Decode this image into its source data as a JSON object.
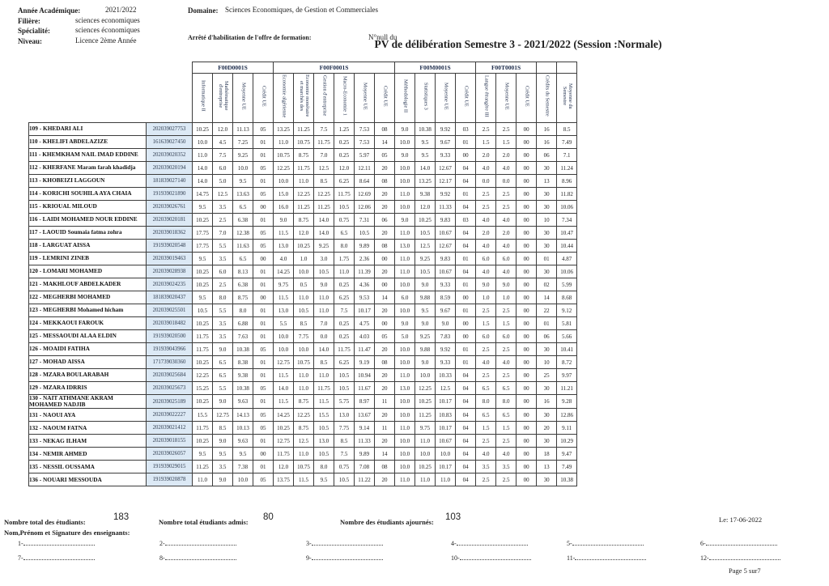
{
  "header": {
    "annee_label": "Année Académique:",
    "annee_value": "2021/2022",
    "filiere_label": "Filière:",
    "filiere_value": "sciences economiques",
    "specialite_label": "Spécialité:",
    "specialite_value": "sciences économiques",
    "niveau_label": "Niveau:",
    "niveau_value": "Licence 2ème Année",
    "domaine_label": "Domaine:",
    "domaine_value": "Sciences Economiques, de Gestion et Commerciales",
    "arrete_label": "Arrêté d'habilitation de l'offre de formation:",
    "arrete_value": "N°null  du",
    "title": "PV de délibération Semestre 3  -  2021/2022 (Session :Normale)"
  },
  "table": {
    "groups": [
      {
        "code": "F00D0001S",
        "span": 4
      },
      {
        "code": "F00F0001S",
        "span": 6
      },
      {
        "code": "F00M0001S",
        "span": 4
      },
      {
        "code": "F00T0001S",
        "span": 3
      }
    ],
    "columns": [
      "Informatique II",
      "Mathématique d'entreprise",
      "Moyenne UE",
      "Crédit UE",
      "Economie algérienne",
      "Economie monétaire et marchés des",
      "Gestion d'entreprise",
      "Macro-Economie 1",
      "Moyenne UE",
      "Crédit UE",
      "Méthodologie II",
      "Statistiques 3",
      "Moyenne UE",
      "Crédit UE",
      "Langue étrangère III",
      "Moyenne UE",
      "Crédit UE",
      "Crédits du Semestre",
      "Moyenne du Semestre"
    ],
    "rows": [
      {
        "name": "109 - KHEDARI  ALI",
        "id": "202039027753",
        "values": [
          "10.25",
          "12.0",
          "11.13",
          "05",
          "13.25",
          "11.25",
          "7.5",
          "1.25",
          "7.53",
          "08",
          "9.0",
          "10.38",
          "9.92",
          "03",
          "2.5",
          "2.5",
          "00",
          "16",
          "8.5"
        ]
      },
      {
        "name": "110 - KHELIFI  ABDELAZIZE",
        "id": "161639027450",
        "values": [
          "10.0",
          "4.5",
          "7.25",
          "01",
          "11.0",
          "10.75",
          "11.75",
          "0.25",
          "7.53",
          "14",
          "10.0",
          "9.5",
          "9.67",
          "01",
          "1.5",
          "1.5",
          "00",
          "16",
          "7.49"
        ]
      },
      {
        "name": "111 - KHEMKHAM  NAIL IMAD EDDINE",
        "id": "202039020352",
        "values": [
          "11.0",
          "7.5",
          "9.25",
          "01",
          "10.75",
          "8.75",
          "7.0",
          "0.25",
          "5.97",
          "05",
          "9.0",
          "9.5",
          "9.33",
          "00",
          "2.0",
          "2.0",
          "00",
          "06",
          "7.1"
        ]
      },
      {
        "name": "112 - KHERFANE  Maram farah khadidja",
        "id": "202039020194",
        "values": [
          "14.0",
          "6.0",
          "10.0",
          "05",
          "12.25",
          "11.75",
          "12.5",
          "12.0",
          "12.11",
          "20",
          "10.0",
          "14.0",
          "12.67",
          "04",
          "4.0",
          "4.0",
          "00",
          "30",
          "11.24"
        ]
      },
      {
        "name": "113 - KHOBEIZI  LAGGOUN",
        "id": "181839027140",
        "values": [
          "14.0",
          "5.0",
          "9.5",
          "01",
          "10.0",
          "11.0",
          "8.5",
          "6.25",
          "8.64",
          "08",
          "10.0",
          "13.25",
          "12.17",
          "04",
          "0.0",
          "0.0",
          "00",
          "13",
          "8.96"
        ]
      },
      {
        "name": "114 - KORICHI  SOUHILA AYA CHAIA",
        "id": "191939021890",
        "values": [
          "14.75",
          "12.5",
          "13.63",
          "05",
          "15.0",
          "12.25",
          "12.25",
          "11.75",
          "12.69",
          "20",
          "11.0",
          "9.38",
          "9.92",
          "01",
          "2.5",
          "2.5",
          "00",
          "30",
          "11.82"
        ]
      },
      {
        "name": "115 - KRIOUAL  MILOUD",
        "id": "202039026761",
        "values": [
          "9.5",
          "3.5",
          "6.5",
          "00",
          "16.0",
          "11.25",
          "11.25",
          "10.5",
          "12.06",
          "20",
          "10.0",
          "12.0",
          "11.33",
          "04",
          "2.5",
          "2.5",
          "00",
          "30",
          "10.06"
        ]
      },
      {
        "name": "116 - LAIDI  MOHAMED NOUR EDDINE",
        "id": "202039020181",
        "values": [
          "10.25",
          "2.5",
          "6.38",
          "01",
          "9.0",
          "8.75",
          "14.0",
          "0.75",
          "7.31",
          "06",
          "9.0",
          "10.25",
          "9.83",
          "03",
          "4.0",
          "4.0",
          "00",
          "10",
          "7.34"
        ]
      },
      {
        "name": "117 - LAOUID  Soumaia fatma zohra",
        "id": "202039018362",
        "values": [
          "17.75",
          "7.0",
          "12.38",
          "05",
          "11.5",
          "12.0",
          "14.0",
          "6.5",
          "10.5",
          "20",
          "11.0",
          "10.5",
          "10.67",
          "04",
          "2.0",
          "2.0",
          "00",
          "30",
          "10.47"
        ]
      },
      {
        "name": "118 - LARGUAT  AISSA",
        "id": "191939020548",
        "values": [
          "17.75",
          "5.5",
          "11.63",
          "05",
          "13.0",
          "10.25",
          "9.25",
          "8.0",
          "9.89",
          "08",
          "13.0",
          "12.5",
          "12.67",
          "04",
          "4.0",
          "4.0",
          "00",
          "30",
          "10.44"
        ]
      },
      {
        "name": "119 - LEMRINI  ZINEB",
        "id": "202039019463",
        "values": [
          "9.5",
          "3.5",
          "6.5",
          "00",
          "4.0",
          "1.0",
          "3.0",
          "1.75",
          "2.36",
          "00",
          "11.0",
          "9.25",
          "9.83",
          "01",
          "6.0",
          "6.0",
          "00",
          "01",
          "4.87"
        ]
      },
      {
        "name": "120 - LOMARI  MOHAMED",
        "id": "202039028938",
        "values": [
          "10.25",
          "6.0",
          "8.13",
          "01",
          "14.25",
          "10.0",
          "10.5",
          "11.0",
          "11.39",
          "20",
          "11.0",
          "10.5",
          "10.67",
          "04",
          "4.0",
          "4.0",
          "00",
          "30",
          "10.06"
        ]
      },
      {
        "name": "121 - MAKHLOUF  ABDELKADER",
        "id": "202039024235",
        "values": [
          "10.25",
          "2.5",
          "6.38",
          "01",
          "9.75",
          "0.5",
          "9.0",
          "0.25",
          "4.36",
          "00",
          "10.0",
          "9.0",
          "9.33",
          "01",
          "9.0",
          "9.0",
          "00",
          "02",
          "5.99"
        ]
      },
      {
        "name": "122 - MEGHERBI  MOHAMED",
        "id": "181839020437",
        "values": [
          "9.5",
          "8.0",
          "8.75",
          "00",
          "11.5",
          "11.0",
          "11.0",
          "6.25",
          "9.53",
          "14",
          "6.0",
          "9.88",
          "8.59",
          "00",
          "1.0",
          "1.0",
          "00",
          "14",
          "8.68"
        ]
      },
      {
        "name": "123 - MEGHERBI  Mohamed hicham",
        "id": "202039025501",
        "values": [
          "10.5",
          "5.5",
          "8.0",
          "01",
          "13.0",
          "10.5",
          "11.0",
          "7.5",
          "10.17",
          "20",
          "10.0",
          "9.5",
          "9.67",
          "01",
          "2.5",
          "2.5",
          "00",
          "22",
          "9.12"
        ]
      },
      {
        "name": "124 - MEKKAOUI  FAROUK",
        "id": "202039018482",
        "values": [
          "10.25",
          "3.5",
          "6.88",
          "01",
          "5.5",
          "8.5",
          "7.0",
          "0.25",
          "4.75",
          "00",
          "9.0",
          "9.0",
          "9.0",
          "00",
          "1.5",
          "1.5",
          "00",
          "01",
          "5.81"
        ]
      },
      {
        "name": "125 - MESSAOUDI  ALAA ELDIN",
        "id": "191939020500",
        "values": [
          "11.75",
          "3.5",
          "7.63",
          "01",
          "10.0",
          "7.75",
          "0.0",
          "0.25",
          "4.03",
          "05",
          "5.0",
          "9.25",
          "7.83",
          "00",
          "6.0",
          "6.0",
          "00",
          "06",
          "5.66"
        ]
      },
      {
        "name": "126 - MOAIDI  FATIHA",
        "id": "191939043966",
        "values": [
          "11.75",
          "9.0",
          "10.38",
          "05",
          "10.0",
          "10.0",
          "14.0",
          "11.75",
          "11.47",
          "20",
          "10.0",
          "9.88",
          "9.92",
          "01",
          "2.5",
          "2.5",
          "00",
          "30",
          "10.41"
        ]
      },
      {
        "name": "127 - MOHAD  AISSA",
        "id": "171739030360",
        "values": [
          "10.25",
          "6.5",
          "8.38",
          "01",
          "12.75",
          "10.75",
          "8.5",
          "6.25",
          "9.19",
          "08",
          "10.0",
          "9.0",
          "9.33",
          "01",
          "4.0",
          "4.0",
          "00",
          "10",
          "8.72"
        ]
      },
      {
        "name": "128 - MZARA  BOULARABAH",
        "id": "202039025684",
        "values": [
          "12.25",
          "6.5",
          "9.38",
          "01",
          "11.5",
          "11.0",
          "11.0",
          "10.5",
          "10.94",
          "20",
          "11.0",
          "10.0",
          "10.33",
          "04",
          "2.5",
          "2.5",
          "00",
          "25",
          "9.97"
        ]
      },
      {
        "name": "129 - MZARA  IDRRIS",
        "id": "202039025673",
        "values": [
          "15.25",
          "5.5",
          "10.38",
          "05",
          "14.0",
          "11.0",
          "11.75",
          "10.5",
          "11.67",
          "20",
          "13.0",
          "12.25",
          "12.5",
          "04",
          "6.5",
          "6.5",
          "00",
          "30",
          "11.21"
        ]
      },
      {
        "name": "130 - NAIT ATHMANE  AKRAM MOHAMED NADJIB",
        "id": "202039025189",
        "values": [
          "10.25",
          "9.0",
          "9.63",
          "01",
          "11.5",
          "8.75",
          "11.5",
          "5.75",
          "8.97",
          "11",
          "10.0",
          "10.25",
          "10.17",
          "04",
          "8.0",
          "8.0",
          "00",
          "16",
          "9.28"
        ]
      },
      {
        "name": "131 - NAOUI  AYA",
        "id": "202039022227",
        "values": [
          "15.5",
          "12.75",
          "14.13",
          "05",
          "14.25",
          "12.25",
          "15.5",
          "13.0",
          "13.67",
          "20",
          "10.0",
          "11.25",
          "10.83",
          "04",
          "6.5",
          "6.5",
          "00",
          "30",
          "12.86"
        ]
      },
      {
        "name": "132 - NAOUM  FATNA",
        "id": "202039021412",
        "values": [
          "11.75",
          "8.5",
          "10.13",
          "05",
          "10.25",
          "8.75",
          "10.5",
          "7.75",
          "9.14",
          "11",
          "11.0",
          "9.75",
          "10.17",
          "04",
          "1.5",
          "1.5",
          "00",
          "20",
          "9.11"
        ]
      },
      {
        "name": "133 - NEKAG  ILHAM",
        "id": "202039018155",
        "values": [
          "10.25",
          "9.0",
          "9.63",
          "01",
          "12.75",
          "12.5",
          "13.0",
          "8.5",
          "11.33",
          "20",
          "10.0",
          "11.0",
          "10.67",
          "04",
          "2.5",
          "2.5",
          "00",
          "30",
          "10.29"
        ]
      },
      {
        "name": "134 - NEMIR  AHMED",
        "id": "202039026057",
        "values": [
          "9.5",
          "9.5",
          "9.5",
          "00",
          "11.75",
          "11.0",
          "10.5",
          "7.5",
          "9.89",
          "14",
          "10.0",
          "10.0",
          "10.0",
          "04",
          "4.0",
          "4.0",
          "00",
          "18",
          "9.47"
        ]
      },
      {
        "name": "135 - NESSIL  OUSSAMA",
        "id": "191939029015",
        "values": [
          "11.25",
          "3.5",
          "7.38",
          "01",
          "12.0",
          "10.75",
          "8.0",
          "0.75",
          "7.08",
          "08",
          "10.0",
          "10.25",
          "10.17",
          "04",
          "3.5",
          "3.5",
          "00",
          "13",
          "7.49"
        ]
      },
      {
        "name": "136 - NOUARI  MESSOUDA",
        "id": "191939020878",
        "values": [
          "11.0",
          "9.0",
          "10.0",
          "05",
          "13.75",
          "11.5",
          "9.5",
          "10.5",
          "11.22",
          "20",
          "11.0",
          "11.0",
          "11.0",
          "04",
          "2.5",
          "2.5",
          "00",
          "30",
          "10.38"
        ]
      }
    ]
  },
  "footer": {
    "total_label": "Nombre total des étudiants:",
    "total_value": "183",
    "admis_label": "Nombre total étudiants admis:",
    "admis_value": "80",
    "ajournes_label": "Nombre des étudiants ajournés:",
    "ajournes_value": "103",
    "date": "Le: 17-06-2022",
    "signature_label": "Nom,Prénom et Signature des enseignants:",
    "signature_slots": [
      "1-",
      "2-",
      "3-",
      "4-",
      "5-",
      "6-",
      "7-",
      "8-",
      "9-",
      "10-",
      "11-",
      "12-"
    ],
    "page": "Page 5 sur7"
  },
  "colors": {
    "id_cell_bg": "#dce9f5",
    "header_text_color": "#1c2b4a",
    "border_color": "#3c3c3c"
  }
}
